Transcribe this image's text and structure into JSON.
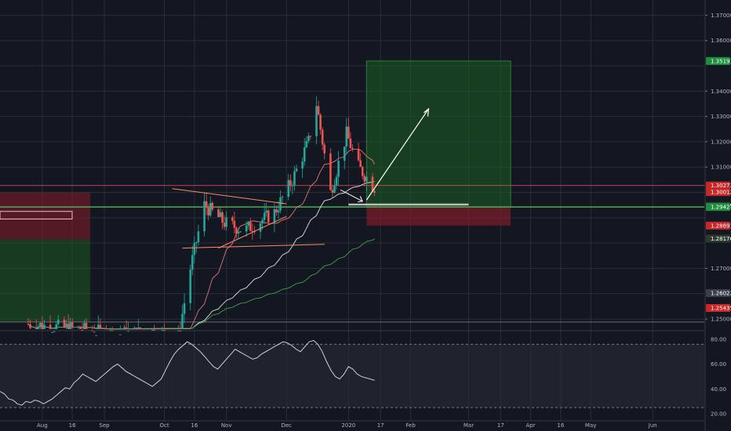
{
  "chart_data": {
    "type": "candlestick",
    "symbol": "",
    "colors": {
      "background": "#131722",
      "grid": "#2a2e39",
      "up": "#26a69a",
      "down": "#ef5350",
      "target_zone": "#1b5e20",
      "stop_zone": "#7f1d2a",
      "ma_red": "#e57373",
      "ma_white": "#e0e0e0",
      "ma_green": "#43a047",
      "level_green": "#4caf50",
      "level_red": "#ef5350",
      "annotation": "#ffffff",
      "trendline": "#ff8a65"
    },
    "price_axis": {
      "ticks": [
        "1.37000",
        "1.36000",
        "1.34000",
        "1.33000",
        "1.32000",
        "1.31000",
        "1.27000",
        "1.25000"
      ],
      "ylim": [
        1.246,
        1.376
      ]
    },
    "time_axis": {
      "labels": [
        "Aug",
        "16",
        "Sep",
        "Oct",
        "16",
        "Nov",
        "Dec",
        "2020",
        "17",
        "Feb",
        "Mar",
        "17",
        "Apr",
        "16",
        "May",
        "Jun"
      ]
    },
    "price_tags": [
      {
        "label": "1.35191",
        "price": 1.35191,
        "color": "#1e8e3e"
      },
      {
        "label": "1.30273",
        "price": 1.30273,
        "color": "#c62828"
      },
      {
        "label": "1.30012",
        "price": 1.30012,
        "color": "#c62828"
      },
      {
        "label": "1.29469",
        "price": 1.29469,
        "color": "#2e3a2e"
      },
      {
        "label": "1.29423",
        "price": 1.29423,
        "color": "#1e8e3e"
      },
      {
        "label": "1.28691",
        "price": 1.28691,
        "color": "#c62828"
      },
      {
        "label": "1.28176",
        "price": 1.28176,
        "color": "#2e3a2e"
      },
      {
        "label": "1.26022",
        "price": 1.26022,
        "color": "#3a3f4b"
      },
      {
        "label": "1.25435",
        "price": 1.25435,
        "color": "#c62828"
      }
    ],
    "positions": [
      {
        "type": "long",
        "entry": 1.29423,
        "target": 1.35191,
        "stop": 1.28691,
        "start": "2020-01-10",
        "end": "2020-03-22"
      },
      {
        "type": "short-old",
        "entry": 1.2815,
        "target": 1.2488,
        "stop": 1.3,
        "start": "2019-07-15",
        "end": "2019-08-25"
      }
    ],
    "rsi": {
      "levels": [
        "80.00",
        "60.00",
        "40.00",
        "20.00"
      ],
      "ylim": [
        15,
        85
      ],
      "values": [
        38,
        36,
        32,
        31,
        28,
        27,
        30,
        29,
        31,
        30,
        28,
        30,
        32,
        35,
        38,
        41,
        40,
        45,
        48,
        52,
        50,
        48,
        46,
        49,
        52,
        55,
        58,
        60,
        57,
        54,
        52,
        50,
        48,
        46,
        44,
        42,
        45,
        48,
        55,
        62,
        68,
        72,
        75,
        78,
        76,
        73,
        70,
        66,
        62,
        58,
        56,
        60,
        64,
        68,
        72,
        70,
        68,
        66,
        64,
        65,
        68,
        70,
        72,
        74,
        76,
        78,
        77,
        75,
        72,
        70,
        74,
        78,
        79,
        76,
        70,
        62,
        55,
        50,
        48,
        52,
        58,
        56,
        52,
        50,
        49,
        48,
        47
      ]
    }
  }
}
